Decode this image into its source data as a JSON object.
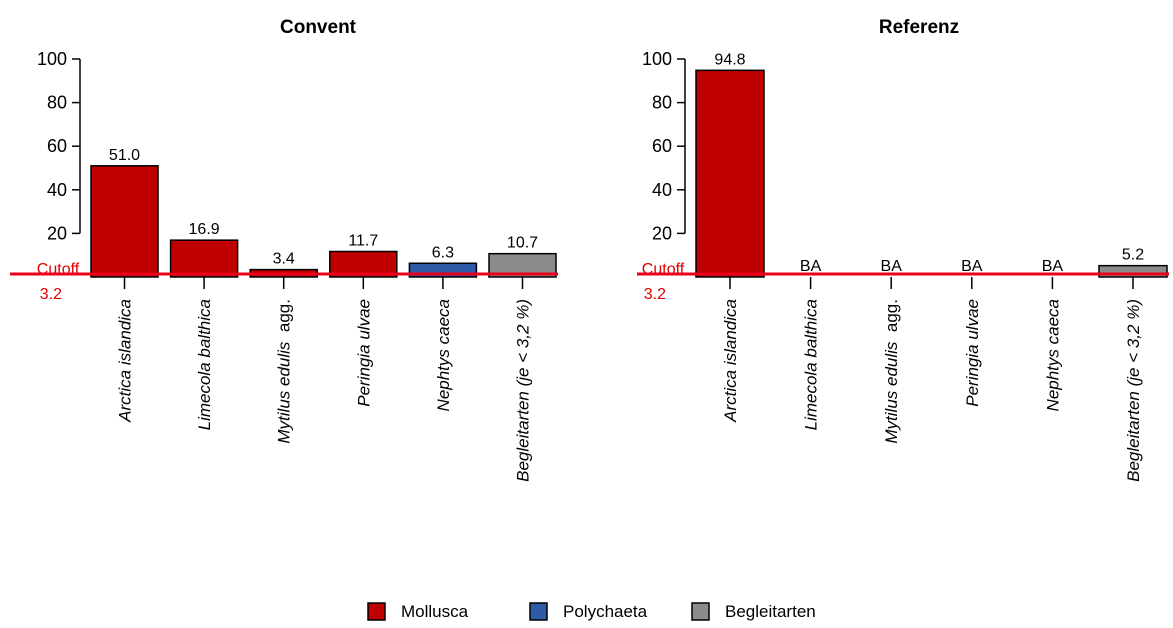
{
  "colors": {
    "cutoff_line": "#e8001c",
    "cutoff_text": "#e00000"
  },
  "legend": [
    {
      "name": "Mollusca",
      "color": "#c00000"
    },
    {
      "name": "Polychaeta",
      "color": "#2e5aa8"
    },
    {
      "name": "Begleitarten",
      "color": "#8c8c8c"
    }
  ],
  "chart_data": [
    {
      "type": "bar",
      "title": "Convent",
      "ylim": [
        0,
        100
      ],
      "yticks": [
        "20",
        "40",
        "60",
        "80",
        "100"
      ],
      "cutoff": {
        "label": "Cutoff",
        "value": 3.2,
        "value_label": "3.2"
      },
      "categories": [
        {
          "species": "Arctica islandica",
          "suffix": ""
        },
        {
          "species": "Limecola balthica",
          "suffix": ""
        },
        {
          "species": "Mytilus edulis",
          "suffix": " agg."
        },
        {
          "species": "Peringia ulvae",
          "suffix": ""
        },
        {
          "species": "Nephtys caeca",
          "suffix": ""
        },
        {
          "species": "Begleitarten (je < 3,2 %)",
          "suffix": ""
        }
      ],
      "values": [
        51.0,
        16.9,
        3.4,
        11.7,
        6.3,
        10.7
      ],
      "data_labels": [
        "51.0",
        "16.9",
        "3.4",
        "11.7",
        "6.3",
        "10.7"
      ],
      "groups": [
        "Mollusca",
        "Mollusca",
        "Mollusca",
        "Mollusca",
        "Polychaeta",
        "Begleitarten"
      ]
    },
    {
      "type": "bar",
      "title": "Referenz",
      "ylim": [
        0,
        100
      ],
      "yticks": [
        "20",
        "40",
        "60",
        "80",
        "100"
      ],
      "cutoff": {
        "label": "Cutoff",
        "value": 3.2,
        "value_label": "3.2"
      },
      "categories": [
        {
          "species": "Arctica islandica",
          "suffix": ""
        },
        {
          "species": "Limecola balthica",
          "suffix": ""
        },
        {
          "species": "Mytilus edulis",
          "suffix": " agg."
        },
        {
          "species": "Peringia ulvae",
          "suffix": ""
        },
        {
          "species": "Nephtys caeca",
          "suffix": ""
        },
        {
          "species": "Begleitarten (je < 3,2 %)",
          "suffix": ""
        }
      ],
      "values": [
        94.8,
        0,
        0,
        0,
        0,
        5.2
      ],
      "data_labels": [
        "94.8",
        "BA",
        "BA",
        "BA",
        "BA",
        "5.2"
      ],
      "groups": [
        "Mollusca",
        "Mollusca",
        "Mollusca",
        "Mollusca",
        "Polychaeta",
        "Begleitarten"
      ]
    }
  ]
}
